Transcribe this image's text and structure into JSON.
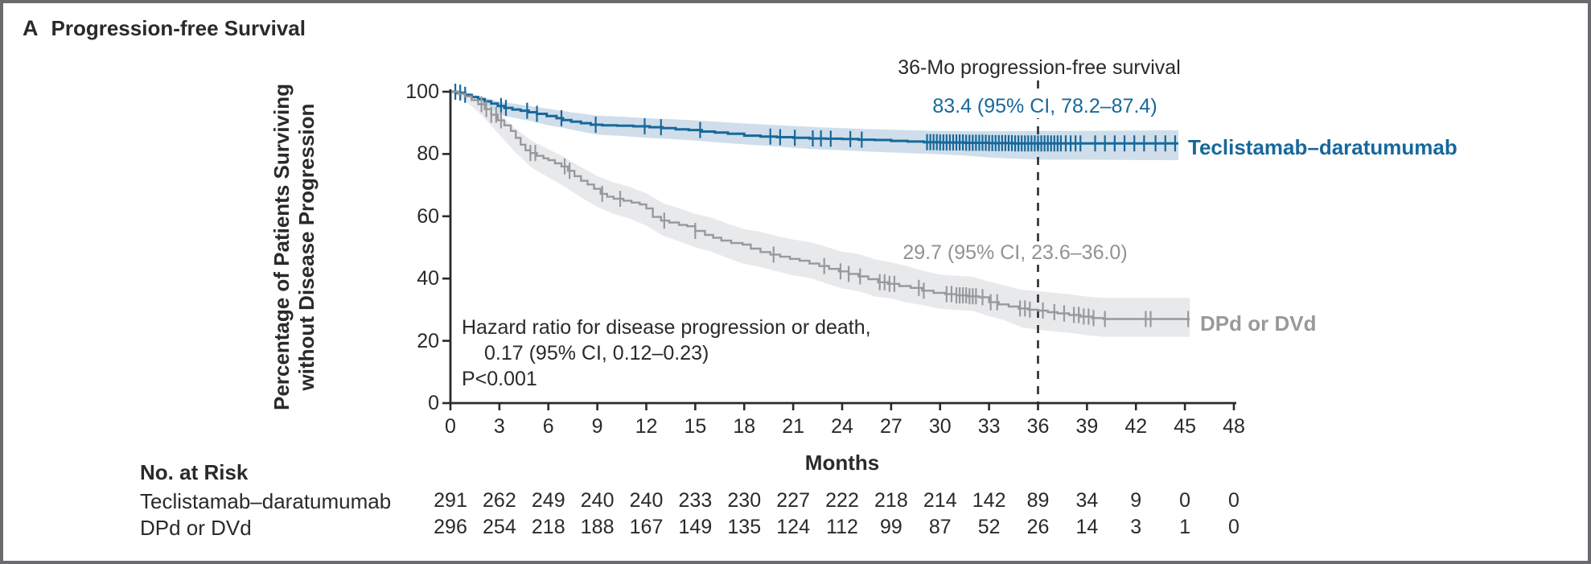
{
  "panel": {
    "label": "A",
    "title": "Progression-free Survival"
  },
  "risk_table": {
    "title": "No. at Risk",
    "months": [
      0,
      3,
      6,
      9,
      12,
      15,
      18,
      21,
      24,
      27,
      30,
      33,
      36,
      39,
      42,
      45,
      48
    ],
    "rows": [
      {
        "label": "Teclistamab–daratumumab",
        "values": [
          "291",
          "262",
          "249",
          "240",
          "240",
          "233",
          "230",
          "227",
          "222",
          "218",
          "214",
          "142",
          "89",
          "34",
          "9",
          "0",
          "0"
        ]
      },
      {
        "label": "DPd or DVd",
        "values": [
          "296",
          "254",
          "218",
          "188",
          "167",
          "149",
          "135",
          "124",
          "112",
          "99",
          "87",
          "52",
          "26",
          "14",
          "3",
          "1",
          "0"
        ]
      }
    ]
  },
  "chart_data": {
    "type": "line",
    "subtype": "kaplan-meier-step",
    "title": "Progression-free Survival",
    "xlabel": "Months",
    "ylabel_line1": "Percentage of Patients Surviving",
    "ylabel_line2": "without Disease Progression",
    "xlim": [
      0,
      48
    ],
    "ylim": [
      0,
      100
    ],
    "xticks": [
      0,
      3,
      6,
      9,
      12,
      15,
      18,
      21,
      24,
      27,
      30,
      33,
      36,
      39,
      42,
      45,
      48
    ],
    "yticks": [
      0,
      20,
      40,
      60,
      80,
      100
    ],
    "grid": false,
    "legend_position": "right-of-curves",
    "reference_line_x": 36,
    "annotations": {
      "milestone_title": "36-Mo progression-free survival",
      "hr_line1": "Hazard ratio for disease progression or death,",
      "hr_line2": "0.17 (95% CI, 0.12–0.23)",
      "hr_line3": "P<0.001"
    },
    "axis_color": "#2b2a2b",
    "series": [
      {
        "name": "Teclistamab–daratumumab",
        "color": "#17689b",
        "band_color": "#cfdeea",
        "milestone_label": "83.4 (95% CI, 78.2–87.4)",
        "milestone_value_36mo": 83.4,
        "points": [
          [
            0,
            100
          ],
          [
            0.4,
            99.7
          ],
          [
            0.9,
            99
          ],
          [
            1.3,
            98.3
          ],
          [
            1.7,
            97.6
          ],
          [
            2.1,
            96.9
          ],
          [
            2.5,
            96.2
          ],
          [
            2.9,
            95.4
          ],
          [
            3.3,
            94.8
          ],
          [
            3.8,
            94.3
          ],
          [
            4.3,
            93.9
          ],
          [
            4.8,
            93.4
          ],
          [
            5.3,
            92.9
          ],
          [
            5.9,
            92.2
          ],
          [
            6.5,
            91.5
          ],
          [
            6.9,
            90.9
          ],
          [
            7.4,
            90.4
          ],
          [
            8,
            89.9
          ],
          [
            8.6,
            89.4
          ],
          [
            9.3,
            89.2
          ],
          [
            10.2,
            89.1
          ],
          [
            11.2,
            88.9
          ],
          [
            12.2,
            88.6
          ],
          [
            13,
            88.3
          ],
          [
            13.8,
            87.9
          ],
          [
            14.6,
            87.7
          ],
          [
            15.4,
            87.2
          ],
          [
            16.2,
            86.9
          ],
          [
            17,
            86.5
          ],
          [
            18,
            85.9
          ],
          [
            19,
            85.6
          ],
          [
            20,
            85.4
          ],
          [
            21,
            85.2
          ],
          [
            22,
            85
          ],
          [
            23,
            84.9
          ],
          [
            24,
            84.8
          ],
          [
            25,
            84.6
          ],
          [
            26,
            84.5
          ],
          [
            27,
            84.2
          ],
          [
            28,
            84
          ],
          [
            29,
            83.8
          ],
          [
            30,
            83.7
          ],
          [
            31.5,
            83.6
          ],
          [
            33,
            83.5
          ],
          [
            34.5,
            83.4
          ],
          [
            44.6,
            83.4
          ]
        ],
        "ci": [
          [
            0,
            100,
            100
          ],
          [
            1,
            97.6,
            99.6
          ],
          [
            2,
            95.2,
            98.3
          ],
          [
            3,
            92.6,
            96.8
          ],
          [
            4,
            91.5,
            96.1
          ],
          [
            5,
            90.5,
            95.3
          ],
          [
            6,
            89.2,
            94.5
          ],
          [
            7,
            88.3,
            93.7
          ],
          [
            8,
            87.2,
            93
          ],
          [
            9,
            86.2,
            92.3
          ],
          [
            10.5,
            85.8,
            92
          ],
          [
            12,
            85.2,
            91.5
          ],
          [
            13.5,
            84.8,
            91.2
          ],
          [
            15,
            84.3,
            90.8
          ],
          [
            16.5,
            83.7,
            90.3
          ],
          [
            18,
            83.1,
            89.8
          ],
          [
            19.5,
            82.6,
            89.4
          ],
          [
            21,
            82,
            89
          ],
          [
            22.5,
            81.5,
            88.6
          ],
          [
            24,
            81.2,
            88.3
          ],
          [
            25.5,
            80.8,
            88
          ],
          [
            27,
            80.5,
            87.8
          ],
          [
            28.5,
            80.2,
            87.6
          ],
          [
            30,
            79.9,
            87.4
          ],
          [
            31.5,
            79.5,
            87.3
          ],
          [
            33,
            78.9,
            87.3
          ],
          [
            34.5,
            78.5,
            87.3
          ],
          [
            36,
            78.2,
            87.4
          ],
          [
            38,
            78.2,
            87.4
          ],
          [
            44.6,
            78,
            87.6
          ]
        ],
        "censor_times": [
          0.3,
          0.6,
          0.9,
          3.1,
          3.4,
          4.7,
          5.3,
          6.8,
          8.9,
          11.9,
          12.9,
          15.3,
          19.6,
          20.2,
          21.1,
          22.2,
          22.7,
          23.3,
          24.5,
          25.2,
          29.2,
          29.4,
          29.6,
          29.8,
          30,
          30.2,
          30.4,
          30.6,
          30.8,
          31,
          31.2,
          31.4,
          31.6,
          31.8,
          32,
          32.2,
          32.4,
          32.6,
          32.8,
          33,
          33.2,
          33.4,
          33.6,
          33.8,
          34,
          34.2,
          34.4,
          34.6,
          34.8,
          35,
          35.2,
          35.4,
          35.6,
          35.8,
          36,
          36.2,
          36.4,
          36.6,
          36.8,
          37,
          37.2,
          37.4,
          37.7,
          38,
          38.3,
          38.6,
          39.5,
          40.1,
          40.7,
          41.3,
          41.9,
          42.5,
          43.2,
          43.8,
          44.4
        ]
      },
      {
        "name": "DPd or DVd",
        "color": "#97999c",
        "band_color": "#e8e9eb",
        "milestone_label": "29.7 (95% CI, 23.6–36.0)",
        "milestone_value_36mo": 29.7,
        "points": [
          [
            0,
            100
          ],
          [
            0.5,
            99.3
          ],
          [
            0.9,
            98.5
          ],
          [
            1.3,
            97.3
          ],
          [
            1.7,
            96
          ],
          [
            2.1,
            94.4
          ],
          [
            2.5,
            92.6
          ],
          [
            2.9,
            90.8
          ],
          [
            3.3,
            89.2
          ],
          [
            3.7,
            87.4
          ],
          [
            4,
            85.2
          ],
          [
            4.3,
            83
          ],
          [
            4.6,
            81.2
          ],
          [
            4.9,
            80.3
          ],
          [
            5.3,
            79.4
          ],
          [
            5.7,
            78.6
          ],
          [
            6,
            78
          ],
          [
            6.4,
            77
          ],
          [
            6.8,
            76
          ],
          [
            7.2,
            74.6
          ],
          [
            7.6,
            72.9
          ],
          [
            8,
            71.4
          ],
          [
            8.4,
            70.2
          ],
          [
            8.8,
            68.8
          ],
          [
            9.2,
            67.2
          ],
          [
            9.6,
            66.3
          ],
          [
            10,
            65.6
          ],
          [
            10.6,
            65
          ],
          [
            11.1,
            64.4
          ],
          [
            11.6,
            63.8
          ],
          [
            12,
            62.5
          ],
          [
            12.4,
            59.8
          ],
          [
            12.9,
            58.6
          ],
          [
            13.4,
            58
          ],
          [
            14,
            57.2
          ],
          [
            14.5,
            56.8
          ],
          [
            15,
            55.3
          ],
          [
            15.6,
            54
          ],
          [
            16.1,
            53.1
          ],
          [
            16.6,
            52.2
          ],
          [
            17.2,
            51.4
          ],
          [
            17.9,
            50.9
          ],
          [
            18.4,
            49.6
          ],
          [
            19,
            48.5
          ],
          [
            19.6,
            47.7
          ],
          [
            20.2,
            47
          ],
          [
            20.8,
            46.3
          ],
          [
            21.4,
            45.7
          ],
          [
            22,
            44.8
          ],
          [
            22.6,
            44
          ],
          [
            23.2,
            43.1
          ],
          [
            23.8,
            42.3
          ],
          [
            24.4,
            41.5
          ],
          [
            25,
            40.7
          ],
          [
            25.6,
            39.8
          ],
          [
            26.2,
            38.8
          ],
          [
            26.8,
            38.3
          ],
          [
            27.5,
            37.6
          ],
          [
            28.2,
            37
          ],
          [
            28.9,
            36.1
          ],
          [
            29.6,
            35.4
          ],
          [
            30.3,
            35
          ],
          [
            31,
            34.6
          ],
          [
            31.7,
            34.3
          ],
          [
            32.4,
            34
          ],
          [
            33,
            32.4
          ],
          [
            33.6,
            31.7
          ],
          [
            34.2,
            31
          ],
          [
            34.8,
            30.4
          ],
          [
            35.4,
            30
          ],
          [
            36,
            29.7
          ],
          [
            36.6,
            29.2
          ],
          [
            37.2,
            28.8
          ],
          [
            37.9,
            28.3
          ],
          [
            38.6,
            27.8
          ],
          [
            39.3,
            27.3
          ],
          [
            40,
            27
          ],
          [
            45.3,
            27
          ]
        ],
        "ci": [
          [
            0,
            100,
            100
          ],
          [
            1,
            96.8,
            99.4
          ],
          [
            2,
            92,
            96.7
          ],
          [
            3,
            86.2,
            92.7
          ],
          [
            4,
            80.4,
            88.1
          ],
          [
            5,
            75.5,
            84.1
          ],
          [
            6,
            72.5,
            81.6
          ],
          [
            7,
            69.5,
            78.9
          ],
          [
            8,
            66.1,
            75.8
          ],
          [
            9,
            63,
            72.9
          ],
          [
            10,
            60.8,
            70.9
          ],
          [
            11,
            59.2,
            69.4
          ],
          [
            12,
            57,
            67.4
          ],
          [
            13,
            53.8,
            64.3
          ],
          [
            14,
            52,
            62.6
          ],
          [
            15,
            50,
            60.8
          ],
          [
            16,
            48.6,
            59.5
          ],
          [
            17,
            46.5,
            57.6
          ],
          [
            18,
            44.7,
            55.9
          ],
          [
            19,
            43.7,
            55
          ],
          [
            20,
            42.3,
            53.7
          ],
          [
            21,
            41,
            52.5
          ],
          [
            22,
            40.2,
            51.7
          ],
          [
            23,
            38.5,
            50.2
          ],
          [
            24,
            36.8,
            48.6
          ],
          [
            25,
            36,
            47.9
          ],
          [
            26,
            34.2,
            46.2
          ],
          [
            27,
            33.6,
            45.2
          ],
          [
            28,
            32.3,
            44
          ],
          [
            29,
            31.4,
            42.4
          ],
          [
            30,
            30.3,
            41.3
          ],
          [
            31,
            29.9,
            40.9
          ],
          [
            32,
            29.6,
            40.6
          ],
          [
            33,
            27.9,
            39
          ],
          [
            34,
            26.5,
            37.7
          ],
          [
            35,
            24.3,
            36.4
          ],
          [
            36,
            23.6,
            36
          ],
          [
            37,
            23,
            35.4
          ],
          [
            38,
            22.5,
            34.9
          ],
          [
            39,
            21.8,
            34.2
          ],
          [
            40,
            21.3,
            33.8
          ],
          [
            45.3,
            21.3,
            33.8
          ]
        ],
        "censor_times": [
          1.9,
          2.2,
          2.5,
          2.8,
          3.1,
          4.9,
          5.2,
          7,
          7.3,
          9.3,
          10.4,
          13.1,
          15,
          19.8,
          22.9,
          23.9,
          24.4,
          25.1,
          26.3,
          26.6,
          26.9,
          27.2,
          28.7,
          29,
          30.4,
          30.7,
          31,
          31.2,
          31.4,
          31.6,
          31.8,
          32,
          32.2,
          32.6,
          33.1,
          33.5,
          34.9,
          35.2,
          35.5,
          36.3,
          37,
          37.6,
          38.2,
          38.5,
          38.8,
          39.1,
          39.4,
          40.1,
          42.6,
          42.9,
          45.2
        ]
      }
    ]
  }
}
